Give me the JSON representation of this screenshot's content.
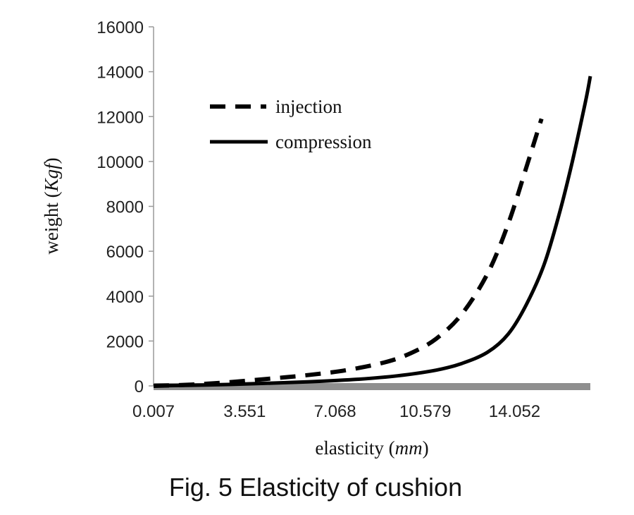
{
  "chart_data": {
    "type": "line",
    "caption_prefix": "Fig. 5",
    "caption_rest": "Elasticity of cushion",
    "xlabel_main": "elasticity",
    "xlabel_unit": "mm",
    "ylabel_main": "weight",
    "ylabel_unit": "Kgf",
    "ylim": [
      0,
      16000
    ],
    "yticks": [
      0,
      2000,
      4000,
      6000,
      8000,
      10000,
      12000,
      14000,
      16000
    ],
    "xlim": [
      0.007,
      17.0
    ],
    "xticks": [
      "0.007",
      "3.551",
      "7.068",
      "10.579",
      "14.052"
    ],
    "xtick_values": [
      0.007,
      3.551,
      7.068,
      10.579,
      14.052
    ],
    "legend_position": "upper-left",
    "grid": false,
    "series": [
      {
        "name": "injection",
        "style": "dashed",
        "color": "#000000",
        "x": [
          0.007,
          1.5,
          3.0,
          4.5,
          6.0,
          7.5,
          9.0,
          10.0,
          11.0,
          12.0,
          13.0,
          13.8,
          14.5,
          15.1
        ],
        "y": [
          0,
          60,
          170,
          320,
          480,
          700,
          1050,
          1450,
          2100,
          3200,
          5000,
          7200,
          9700,
          11900
        ]
      },
      {
        "name": "compression",
        "style": "solid",
        "color": "#000000",
        "x": [
          0.007,
          2.0,
          4.0,
          6.0,
          8.0,
          9.5,
          11.0,
          12.0,
          13.0,
          13.8,
          14.5,
          15.2,
          15.8,
          16.3,
          16.8,
          17.0
        ],
        "y": [
          0,
          40,
          100,
          180,
          300,
          450,
          700,
          1000,
          1500,
          2300,
          3600,
          5400,
          7700,
          10000,
          12600,
          13800
        ]
      }
    ]
  }
}
